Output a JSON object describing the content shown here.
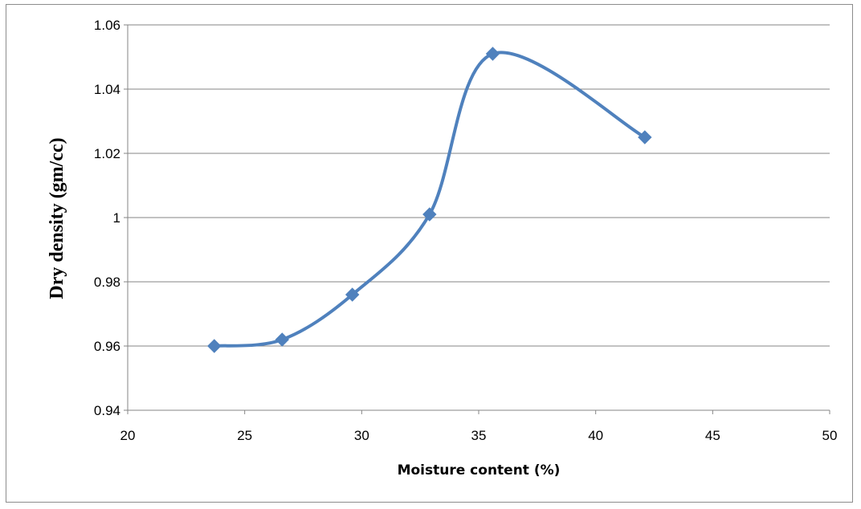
{
  "chart_data": {
    "type": "line",
    "smooth": true,
    "xlabel": "Moisture content (%)",
    "ylabel": "Dry density (gm/cc)",
    "xlim": [
      20,
      50
    ],
    "ylim": [
      0.94,
      1.06
    ],
    "x_ticks": [
      "20",
      "25",
      "30",
      "35",
      "40",
      "45",
      "50"
    ],
    "y_ticks": [
      "0.94",
      "0.96",
      "0.98",
      "1",
      "1.02",
      "1.04",
      "1.06"
    ],
    "grid": "horizontal",
    "legend": "none",
    "series": [
      {
        "color": "#4f81bd",
        "marker": "diamond",
        "points": [
          {
            "x": 23.7,
            "y": 0.96
          },
          {
            "x": 26.6,
            "y": 0.962
          },
          {
            "x": 29.6,
            "y": 0.976
          },
          {
            "x": 32.9,
            "y": 1.001
          },
          {
            "x": 35.6,
            "y": 1.051
          },
          {
            "x": 42.1,
            "y": 1.025
          }
        ]
      }
    ]
  }
}
